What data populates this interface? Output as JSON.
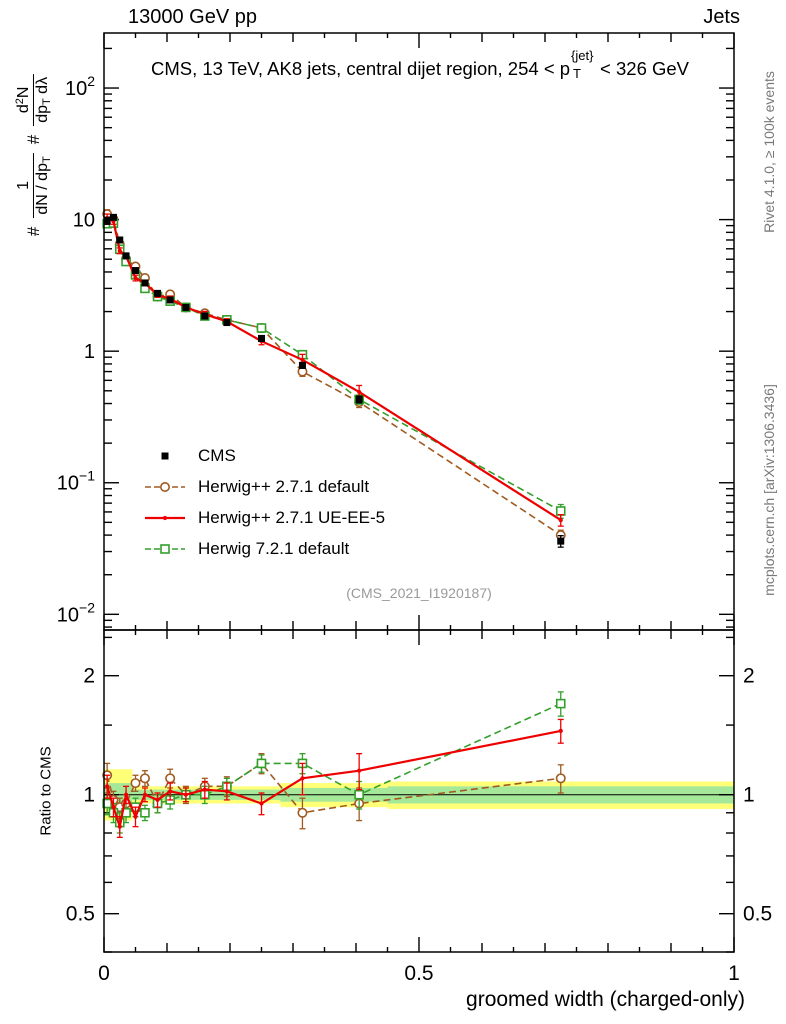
{
  "header": {
    "left": "13000 GeV pp",
    "right": "Jets"
  },
  "title": {
    "pre": "CMS, 13 TeV, AK8 jets, central dijet region, 254 < p",
    "sup": "{jet}",
    "sub": "T",
    "post": "< 326 GeV"
  },
  "ylabel_main": {
    "hash1": "#",
    "frac1_num": "1",
    "frac1_den": "dN / dp",
    "frac1_den_sub": "T",
    "hash2": "#",
    "frac2_num_a": "d",
    "frac2_num_sup": "2",
    "frac2_num_b": "N",
    "frac2_den_a": "dp",
    "frac2_den_sub": "T",
    "frac2_den_b": " dλ"
  },
  "ylabel_ratio": "Ratio to CMS",
  "xlabel": "groomed width (charged-only)",
  "watermark": "(CMS_2021_I1920187)",
  "side_texts": {
    "top_right": "Rivet 4.1.0, ≥ 100k events",
    "bottom_right": "mcplots.cern.ch [arXiv:1306.3436]"
  },
  "legend": {
    "items": [
      {
        "label": "CMS"
      },
      {
        "label": "Herwig++ 2.7.1 default"
      },
      {
        "label": "Herwig++ 2.7.1 UE-EE-5"
      },
      {
        "label": "Herwig 7.2.1 default"
      }
    ]
  },
  "axes": {
    "x": {
      "label_ticks": [
        {
          "v": 0,
          "label": "0"
        },
        {
          "v": 0.5,
          "label": "0.5"
        },
        {
          "v": 1,
          "label": "1"
        }
      ]
    },
    "y_main": {
      "label_ticks": [
        {
          "v": 100,
          "base": "10",
          "exp": "2"
        },
        {
          "v": 10,
          "base": "10",
          "exp": ""
        },
        {
          "v": 1,
          "base": "1",
          "exp": ""
        },
        {
          "v": 0.1,
          "base": "10",
          "exp": "−1"
        },
        {
          "v": 0.01,
          "base": "10",
          "exp": "−2"
        }
      ]
    },
    "y_ratio": {
      "label_ticks": [
        {
          "v": 0.5,
          "label": "0.5"
        },
        {
          "v": 1,
          "label": "1"
        },
        {
          "v": 2,
          "label": "2"
        }
      ],
      "minor_ticks": [
        0.4,
        0.6,
        0.7,
        0.8,
        0.9,
        1.5,
        2.5
      ]
    }
  },
  "chart_data": {
    "type": "line",
    "x_axis_label": "groomed width (charged-only)",
    "xlim": [
      0,
      1
    ],
    "ylim_main": [
      0.0076,
      262
    ],
    "ylim_ratio": [
      0.4,
      2.61
    ],
    "x": [
      0.005,
      0.015,
      0.025,
      0.035,
      0.05,
      0.065,
      0.085,
      0.105,
      0.13,
      0.16,
      0.195,
      0.25,
      0.315,
      0.405,
      0.725
    ],
    "series": [
      {
        "name": "CMS",
        "z": 4,
        "color": "#000000",
        "marker": "filled-square",
        "line": "none",
        "values": [
          9.8,
          10.4,
          7.0,
          5.3,
          4.1,
          3.3,
          2.75,
          2.45,
          2.15,
          1.85,
          1.65,
          1.25,
          0.78,
          0.43,
          0.036
        ],
        "rel_err": [
          0.06,
          0.04,
          0.04,
          0.04,
          0.04,
          0.04,
          0.04,
          0.04,
          0.04,
          0.04,
          0.04,
          0.05,
          0.05,
          0.06,
          0.1
        ]
      },
      {
        "name": "Herwig++ 2.7.1 default",
        "z": 1,
        "color": "#a05a20",
        "marker": "open-circle",
        "line": "dashed",
        "values": [
          11.0,
          10.1,
          6.5,
          5.0,
          4.4,
          3.6,
          2.6,
          2.7,
          2.15,
          1.94,
          1.73,
          1.5,
          0.7,
          0.41,
          0.04
        ],
        "ratio": [
          1.12,
          0.97,
          0.93,
          0.95,
          1.07,
          1.1,
          0.95,
          1.1,
          1.0,
          1.05,
          1.05,
          1.2,
          0.9,
          0.95,
          1.1
        ],
        "ratio_err": [
          0.08,
          0.05,
          0.05,
          0.05,
          0.05,
          0.05,
          0.05,
          0.06,
          0.05,
          0.05,
          0.06,
          0.07,
          0.08,
          0.09,
          0.09
        ]
      },
      {
        "name": "Herwig++ 2.7.1 UE-EE-5",
        "z": 3,
        "color": "#ee0000",
        "marker": "dot",
        "line": "solid",
        "values": [
          10.3,
          9.7,
          5.8,
          5.3,
          3.6,
          3.3,
          2.67,
          2.5,
          2.15,
          1.91,
          1.68,
          1.19,
          0.86,
          0.49,
          0.052
        ],
        "ratio": [
          1.05,
          0.93,
          0.83,
          1.0,
          0.88,
          1.0,
          0.97,
          1.02,
          1.0,
          1.03,
          1.02,
          0.95,
          1.1,
          1.15,
          1.45
        ],
        "ratio_err": [
          0.07,
          0.05,
          0.05,
          0.05,
          0.05,
          0.04,
          0.04,
          0.05,
          0.04,
          0.05,
          0.05,
          0.06,
          0.1,
          0.12,
          0.1
        ]
      },
      {
        "name": "Herwig 7.2.1 default",
        "z": 2,
        "color": "#33a02c",
        "marker": "open-square",
        "line": "dashed",
        "values": [
          9.3,
          9.4,
          5.95,
          4.8,
          3.8,
          3.0,
          2.6,
          2.4,
          2.15,
          1.85,
          1.73,
          1.5,
          0.94,
          0.43,
          0.061
        ],
        "ratio": [
          0.95,
          0.9,
          0.85,
          0.9,
          0.93,
          0.9,
          0.95,
          0.97,
          1.0,
          1.0,
          1.05,
          1.2,
          1.2,
          1.0,
          1.7
        ],
        "ratio_err": [
          0.06,
          0.05,
          0.05,
          0.05,
          0.05,
          0.04,
          0.05,
          0.05,
          0.04,
          0.05,
          0.05,
          0.06,
          0.07,
          0.08,
          0.12
        ]
      }
    ],
    "ratio_bands": {
      "yellow_color": "#ffff78",
      "green_color": "#a6e89a",
      "yellow": [
        {
          "x0": 0,
          "x1": 0.045,
          "lo": 0.86,
          "hi": 1.16
        },
        {
          "x0": 0.045,
          "x1": 0.28,
          "lo": 0.95,
          "hi": 1.05
        },
        {
          "x0": 0.28,
          "x1": 0.45,
          "lo": 0.93,
          "hi": 1.07
        },
        {
          "x0": 0.45,
          "x1": 1.0,
          "lo": 0.92,
          "hi": 1.08
        }
      ],
      "green": [
        {
          "x0": 0,
          "x1": 0.045,
          "lo": 0.93,
          "hi": 1.07
        },
        {
          "x0": 0.045,
          "x1": 0.28,
          "lo": 0.97,
          "hi": 1.03
        },
        {
          "x0": 0.28,
          "x1": 0.45,
          "lo": 0.96,
          "hi": 1.04
        },
        {
          "x0": 0.45,
          "x1": 1.0,
          "lo": 0.95,
          "hi": 1.05
        }
      ]
    }
  }
}
